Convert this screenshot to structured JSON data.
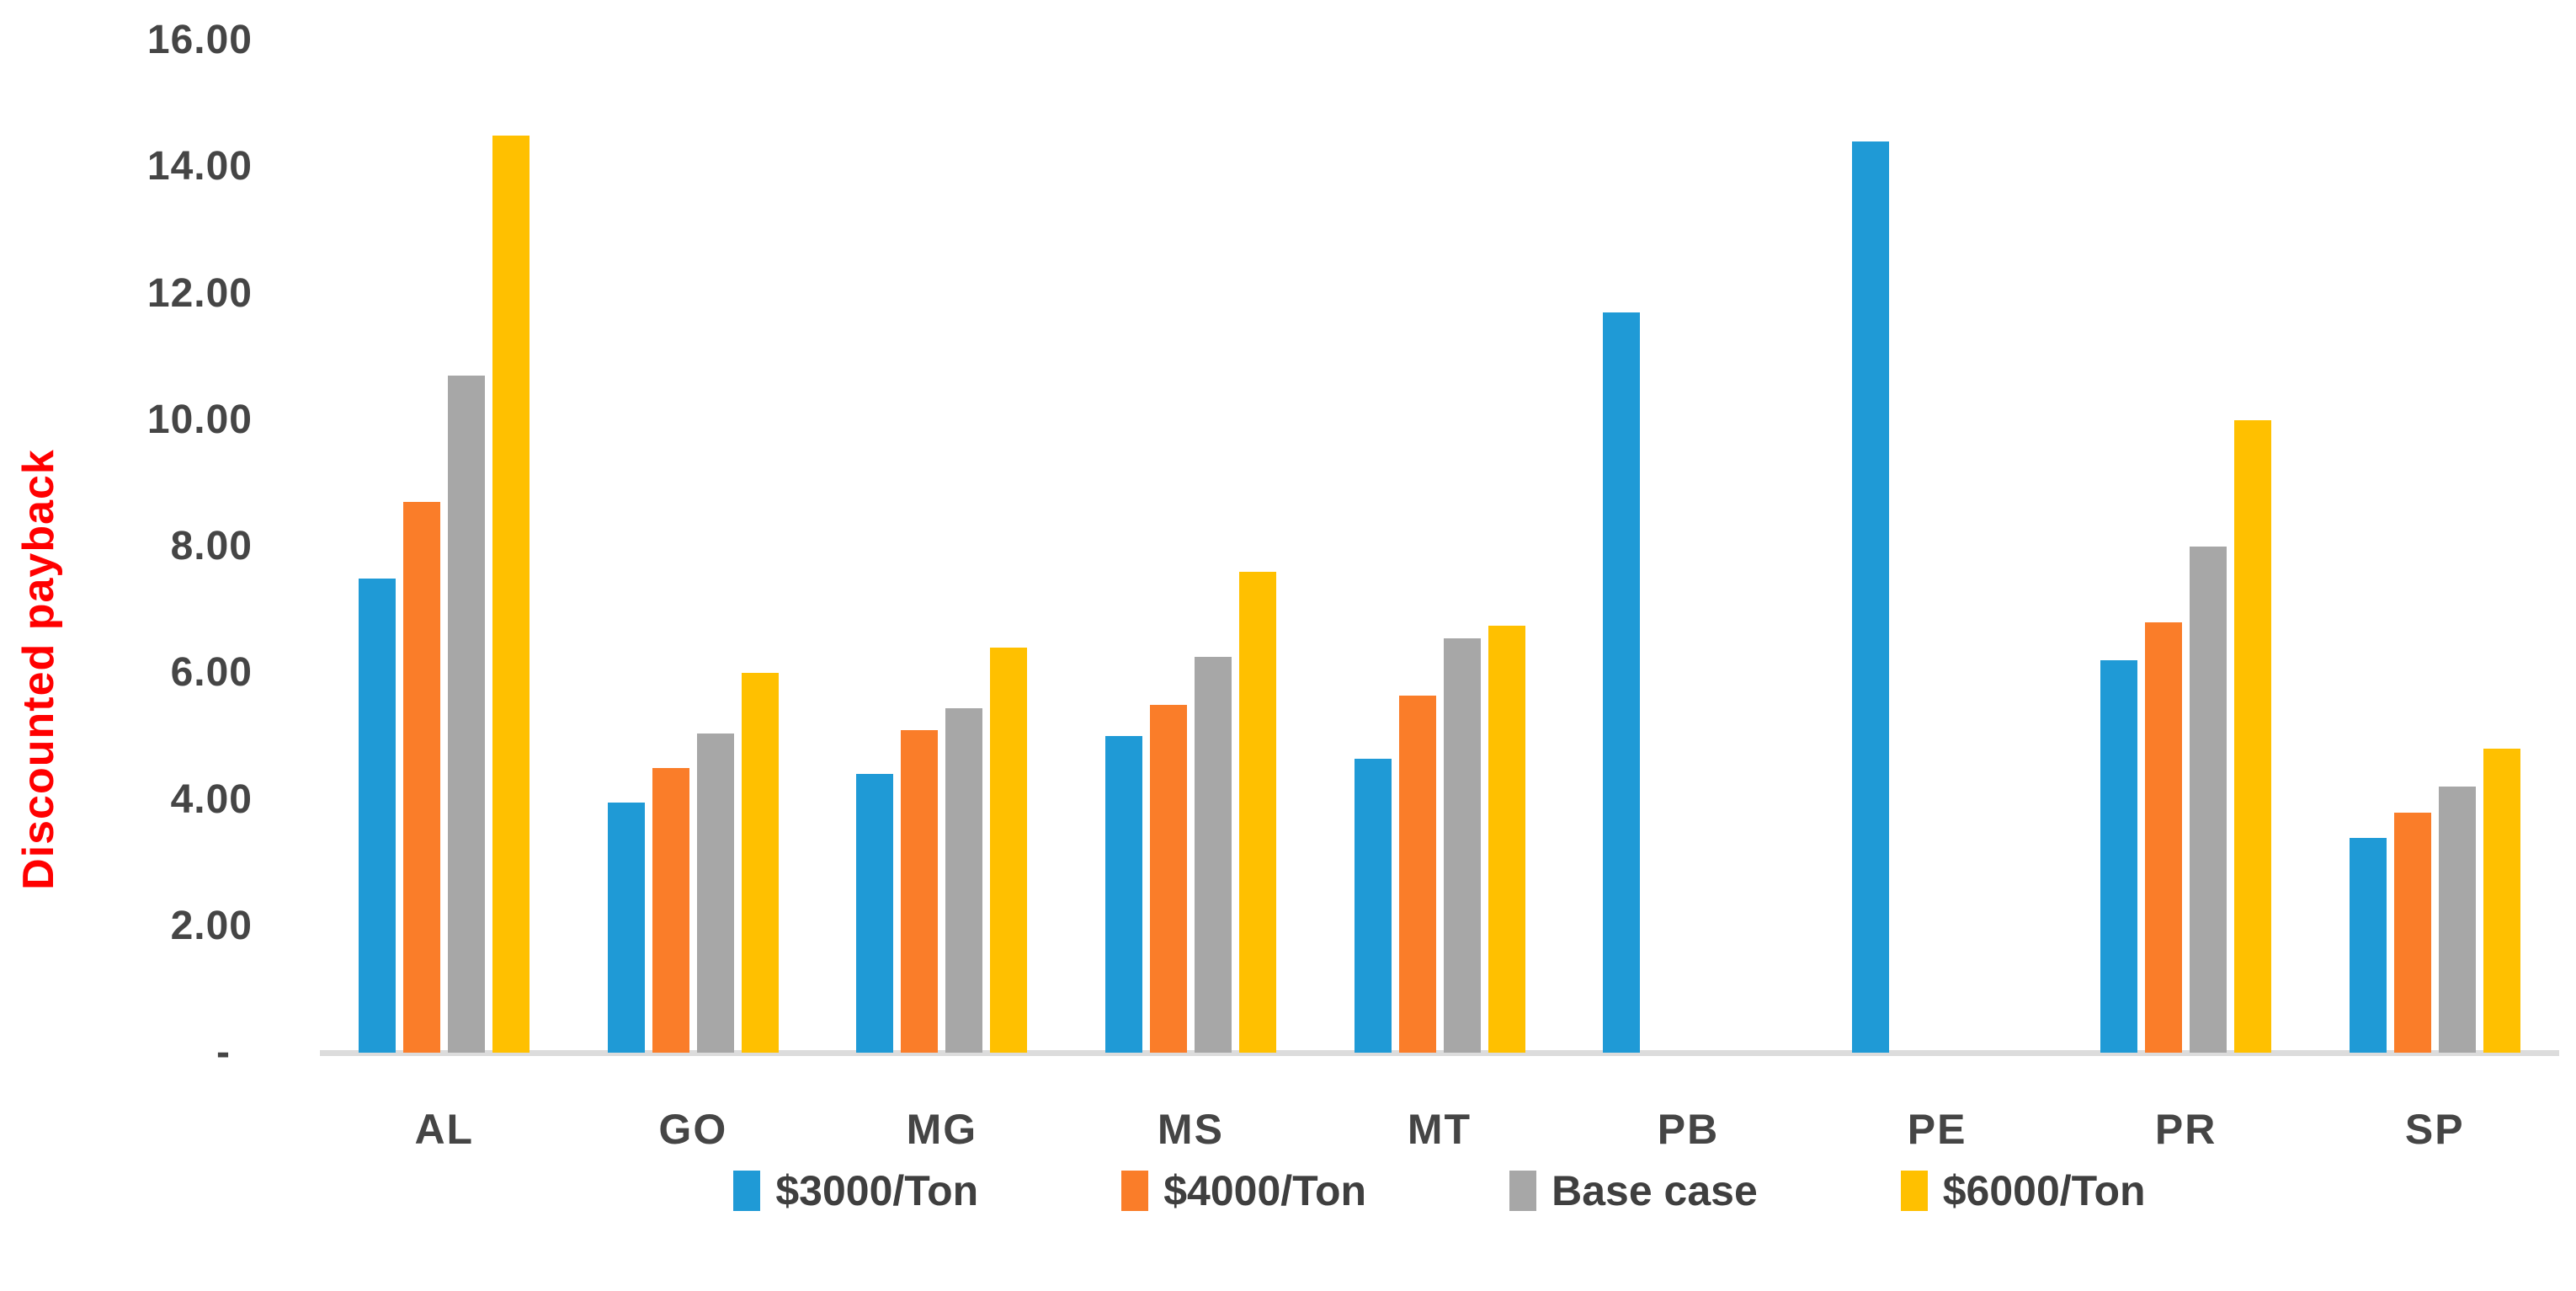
{
  "chart_data": {
    "type": "bar",
    "title": "",
    "ylabel": "Discounted payback",
    "ylabel_color": "#ff0000",
    "xlabel": "",
    "categories": [
      "AL",
      "GO",
      "MG",
      "MS",
      "MT",
      "PB",
      "PE",
      "PR",
      "SP"
    ],
    "series": [
      {
        "name": "$3000/Ton",
        "color": "#1f9ad6",
        "values": [
          7.5,
          3.95,
          4.4,
          5.0,
          4.65,
          11.7,
          14.4,
          6.2,
          3.4
        ]
      },
      {
        "name": "$4000/Ton",
        "color": "#fa7d29",
        "values": [
          8.7,
          4.5,
          5.1,
          5.5,
          5.65,
          0,
          0,
          6.8,
          3.8
        ]
      },
      {
        "name": "Base case",
        "color": "#a7a7a7",
        "values": [
          10.7,
          5.05,
          5.45,
          6.25,
          6.55,
          0,
          0,
          8.0,
          4.2
        ]
      },
      {
        "name": "$6000/Ton",
        "color": "#ffc000",
        "values": [
          14.5,
          6.0,
          6.4,
          7.6,
          6.75,
          0,
          0,
          10.0,
          4.8
        ]
      }
    ],
    "ylim": [
      0,
      16
    ],
    "y_ticks": [
      {
        "label": "16.00",
        "value": 16
      },
      {
        "label": "14.00",
        "value": 14
      },
      {
        "label": "12.00",
        "value": 12
      },
      {
        "label": "10.00",
        "value": 10
      },
      {
        "label": "8.00",
        "value": 8
      },
      {
        "label": "6.00",
        "value": 6
      },
      {
        "label": "4.00",
        "value": 4
      },
      {
        "label": "2.00",
        "value": 2
      },
      {
        "label": "-",
        "value": 0
      }
    ],
    "grid": false,
    "legend_position": "bottom",
    "axis_line_color": "#dcdcdc",
    "tick_text_color": "#454545"
  }
}
